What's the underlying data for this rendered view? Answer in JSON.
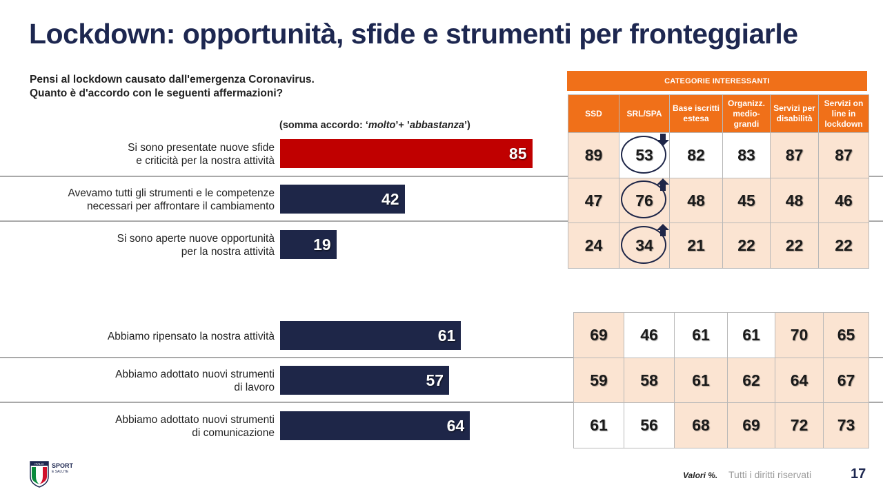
{
  "title": "Lockdown: opportunità, sfide e strumenti per fronteggiarle",
  "question": {
    "line1": "Pensi al lockdown causato dall'emergenza Coronavirus.",
    "line2": "Quanto è d'accordo con le seguenti affermazioni?"
  },
  "sum_note": {
    "prefix": "(somma accordo: ‘",
    "molto": "molto",
    "mid": "’+ ’",
    "abbastanza": "abbastanza",
    "suffix": "’)"
  },
  "categories_banner": "CATEGORIE INTERESSANTI",
  "table_headers": [
    "SSD",
    "SRL/SPA",
    "Base iscritti estesa",
    "Organizz. medio-grandi",
    "Servizi per disabilità",
    "Servizi on line in lockdown"
  ],
  "colors": {
    "navy": "#1e2648",
    "red": "#c00000",
    "orange": "#f07019",
    "highlight": "#fbe4d2"
  },
  "chart_data": {
    "type": "bar",
    "orientation": "horizontal",
    "xlim": [
      0,
      100
    ],
    "categories": [
      [
        "Si sono presentate nuove sfide",
        "e criticità per la nostra attività"
      ],
      [
        "Avevamo tutti gli strumenti e le competenze",
        "necessari per affrontare il cambiamento"
      ],
      [
        "Si sono aperte nuove opportunità",
        "per la nostra attività"
      ],
      [
        "Abbiamo ripensato la nostra attività"
      ],
      [
        "Abbiamo adottato nuovi strumenti",
        "di lavoro"
      ],
      [
        "Abbiamo adottato nuovi strumenti",
        "di comunicazione"
      ]
    ],
    "values": [
      85,
      42,
      19,
      61,
      57,
      64
    ],
    "bar_colors": [
      "red",
      "navy",
      "navy",
      "navy",
      "navy",
      "navy"
    ],
    "table": {
      "top": [
        [
          89,
          53,
          82,
          83,
          87,
          87
        ],
        [
          47,
          76,
          48,
          45,
          48,
          46
        ],
        [
          24,
          34,
          21,
          22,
          22,
          22
        ]
      ],
      "top_highlight": [
        [
          true,
          false,
          false,
          false,
          true,
          true
        ],
        [
          true,
          true,
          true,
          true,
          true,
          true
        ],
        [
          true,
          true,
          true,
          true,
          true,
          true
        ]
      ],
      "bottom": [
        [
          69,
          46,
          61,
          61,
          70,
          65
        ],
        [
          59,
          58,
          61,
          62,
          64,
          67
        ],
        [
          61,
          56,
          68,
          69,
          72,
          73
        ]
      ],
      "bottom_highlight": [
        [
          true,
          false,
          false,
          false,
          true,
          true
        ],
        [
          true,
          true,
          true,
          true,
          true,
          true
        ],
        [
          false,
          false,
          true,
          true,
          true,
          true
        ]
      ],
      "circled_column": "SRL/SPA",
      "circled_directions": [
        "down",
        "up",
        "up"
      ]
    }
  },
  "footer": {
    "valori": "Valori %.",
    "rights": "Tutti i diritti riservati",
    "page": "17"
  },
  "logo": {
    "line1": "SPORT",
    "line2": "E SALUTE",
    "badge_text": "ITALIA"
  }
}
